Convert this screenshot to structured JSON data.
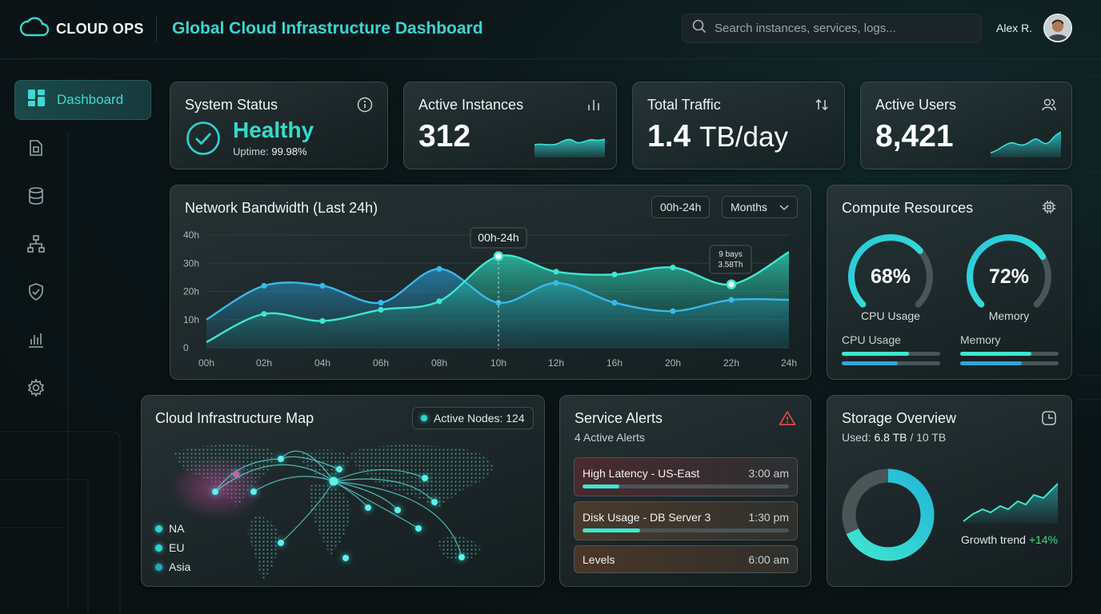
{
  "header": {
    "brand": "CLOUD OPS",
    "title": "Global Cloud Infrastructure Dashboard",
    "search_placeholder": "Search instances, services, logs...",
    "user_name": "Alex R."
  },
  "sidebar": {
    "items": [
      {
        "label": "Dashboard",
        "icon": "dashboard-icon",
        "active": true
      },
      {
        "label": "",
        "icon": "documents-icon"
      },
      {
        "label": "",
        "icon": "database-icon"
      },
      {
        "label": "",
        "icon": "network-icon"
      },
      {
        "label": "",
        "icon": "shield-icon"
      },
      {
        "label": "",
        "icon": "analytics-icon"
      },
      {
        "label": "",
        "icon": "gear-icon"
      }
    ]
  },
  "system_status": {
    "title": "System Status",
    "status": "Healthy",
    "uptime_label": "Uptime:",
    "uptime_value": "99.98%"
  },
  "active_instances": {
    "title": "Active Instances",
    "value": "312"
  },
  "total_traffic": {
    "title": "Total Traffic",
    "value": "1.4",
    "unit": "TB/day"
  },
  "active_users": {
    "title": "Active Users",
    "value": "8,421"
  },
  "bandwidth": {
    "title": "Network Bandwidth (Last 24h)",
    "range_chip": "00h-24h",
    "period_select": "Months",
    "tooltip_main": "00h-24h",
    "tooltip_small_line1": "9 bays",
    "tooltip_small_line2": "3.58Th"
  },
  "chart_data": {
    "type": "area",
    "categories": [
      "00h",
      "02h",
      "04h",
      "06h",
      "08h",
      "10h",
      "12h",
      "16h",
      "20h",
      "22h",
      "24h"
    ],
    "series": [
      {
        "values": [
          10,
          22,
          22,
          16,
          28,
          16,
          23,
          16,
          13,
          17,
          17
        ]
      },
      {
        "values": [
          2,
          12,
          9.5,
          13.5,
          16.5,
          32.5,
          27,
          26,
          28.5,
          22.5,
          34
        ]
      }
    ],
    "yticks": [
      "0",
      "10h",
      "20h",
      "30h",
      "40h"
    ],
    "ylim": [
      0,
      40
    ],
    "grid": true
  },
  "compute": {
    "title": "Compute Resources",
    "cpu_pct": 68,
    "cpu_text": "68%",
    "cpu_label": "CPU Usage",
    "mem_pct": 72,
    "mem_text": "72%",
    "mem_label": "Memory",
    "bars_cpu_label": "CPU Usage",
    "bars_mem_label": "Memory"
  },
  "map": {
    "title": "Cloud Infrastructure Map",
    "badge": "Active Nodes: 124",
    "legend": [
      "NA",
      "EU",
      "Asia"
    ]
  },
  "alerts": {
    "title": "Service Alerts",
    "subtitle": "4 Active Alerts",
    "items": [
      {
        "text": "High Latency - US-East",
        "time": "3:00 am"
      },
      {
        "text": "Disk Usage - DB Server 3",
        "time": "1:30 pm"
      },
      {
        "text": "Levels",
        "time": "6:00 am"
      }
    ]
  },
  "storage": {
    "title": "Storage Overview",
    "used_label": "Used:",
    "used_value": "6.8 TB",
    "total": "/ 10 TB",
    "used_fraction": 0.68,
    "trend_label": "Growth trend",
    "trend_value": "+14%"
  },
  "colors": {
    "accent": "#2fd4cf",
    "brand_title": "#38d6d2",
    "positive": "#3ddc84",
    "alert": "#e5484d"
  }
}
